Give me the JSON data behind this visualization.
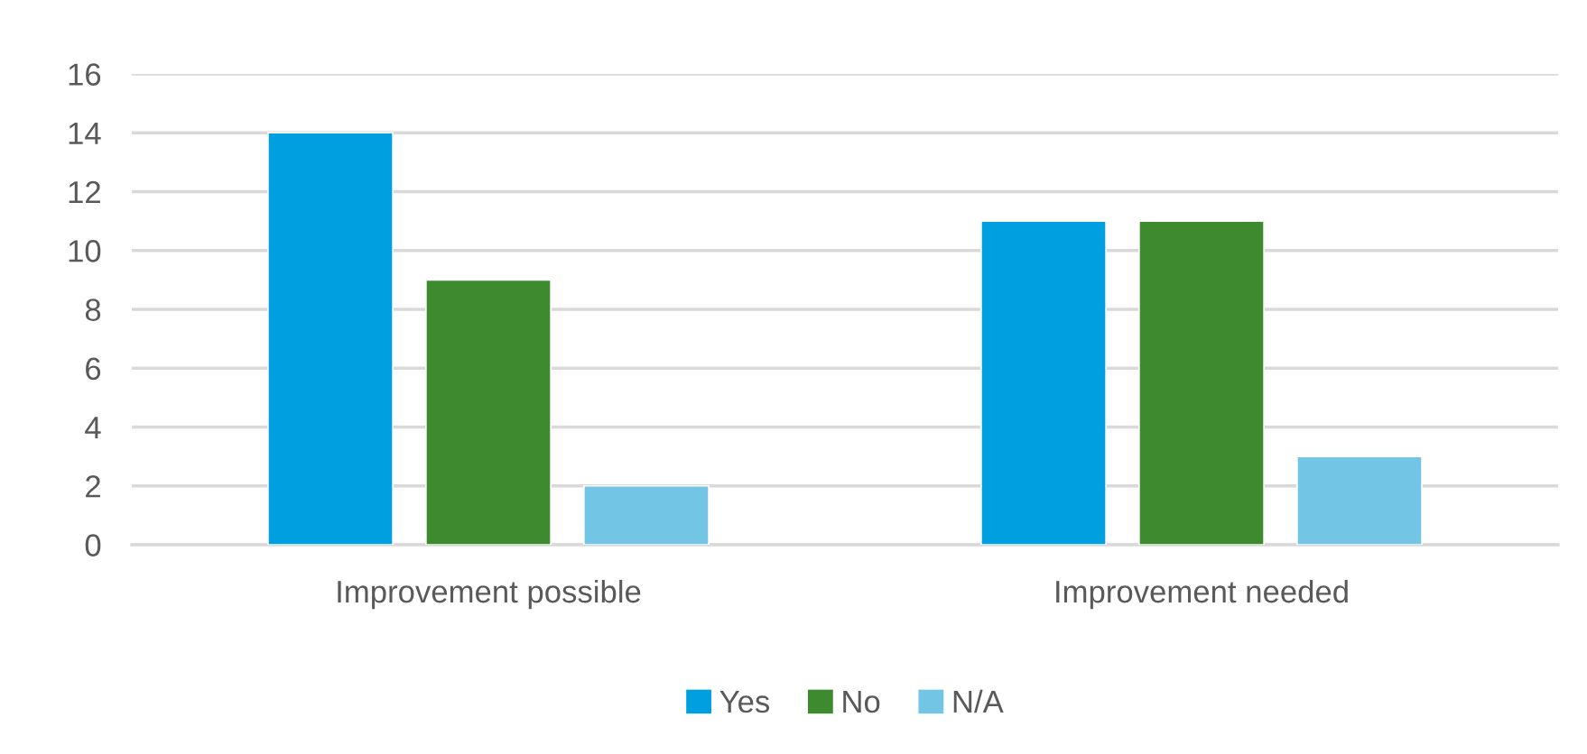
{
  "chart_data": {
    "type": "bar",
    "categories": [
      "Improvement possible",
      "Improvement needed"
    ],
    "series": [
      {
        "name": "Yes",
        "color": "#009fdf",
        "values": [
          14,
          11
        ]
      },
      {
        "name": "No",
        "color": "#3d8a2f",
        "values": [
          9,
          11
        ]
      },
      {
        "name": "N/A",
        "color": "#72c5e5",
        "values": [
          2,
          3
        ]
      }
    ],
    "ylim": [
      0,
      16
    ],
    "yticks": [
      0,
      2,
      4,
      6,
      8,
      10,
      12,
      14,
      16
    ],
    "grid": "y",
    "legend": "bottom"
  }
}
